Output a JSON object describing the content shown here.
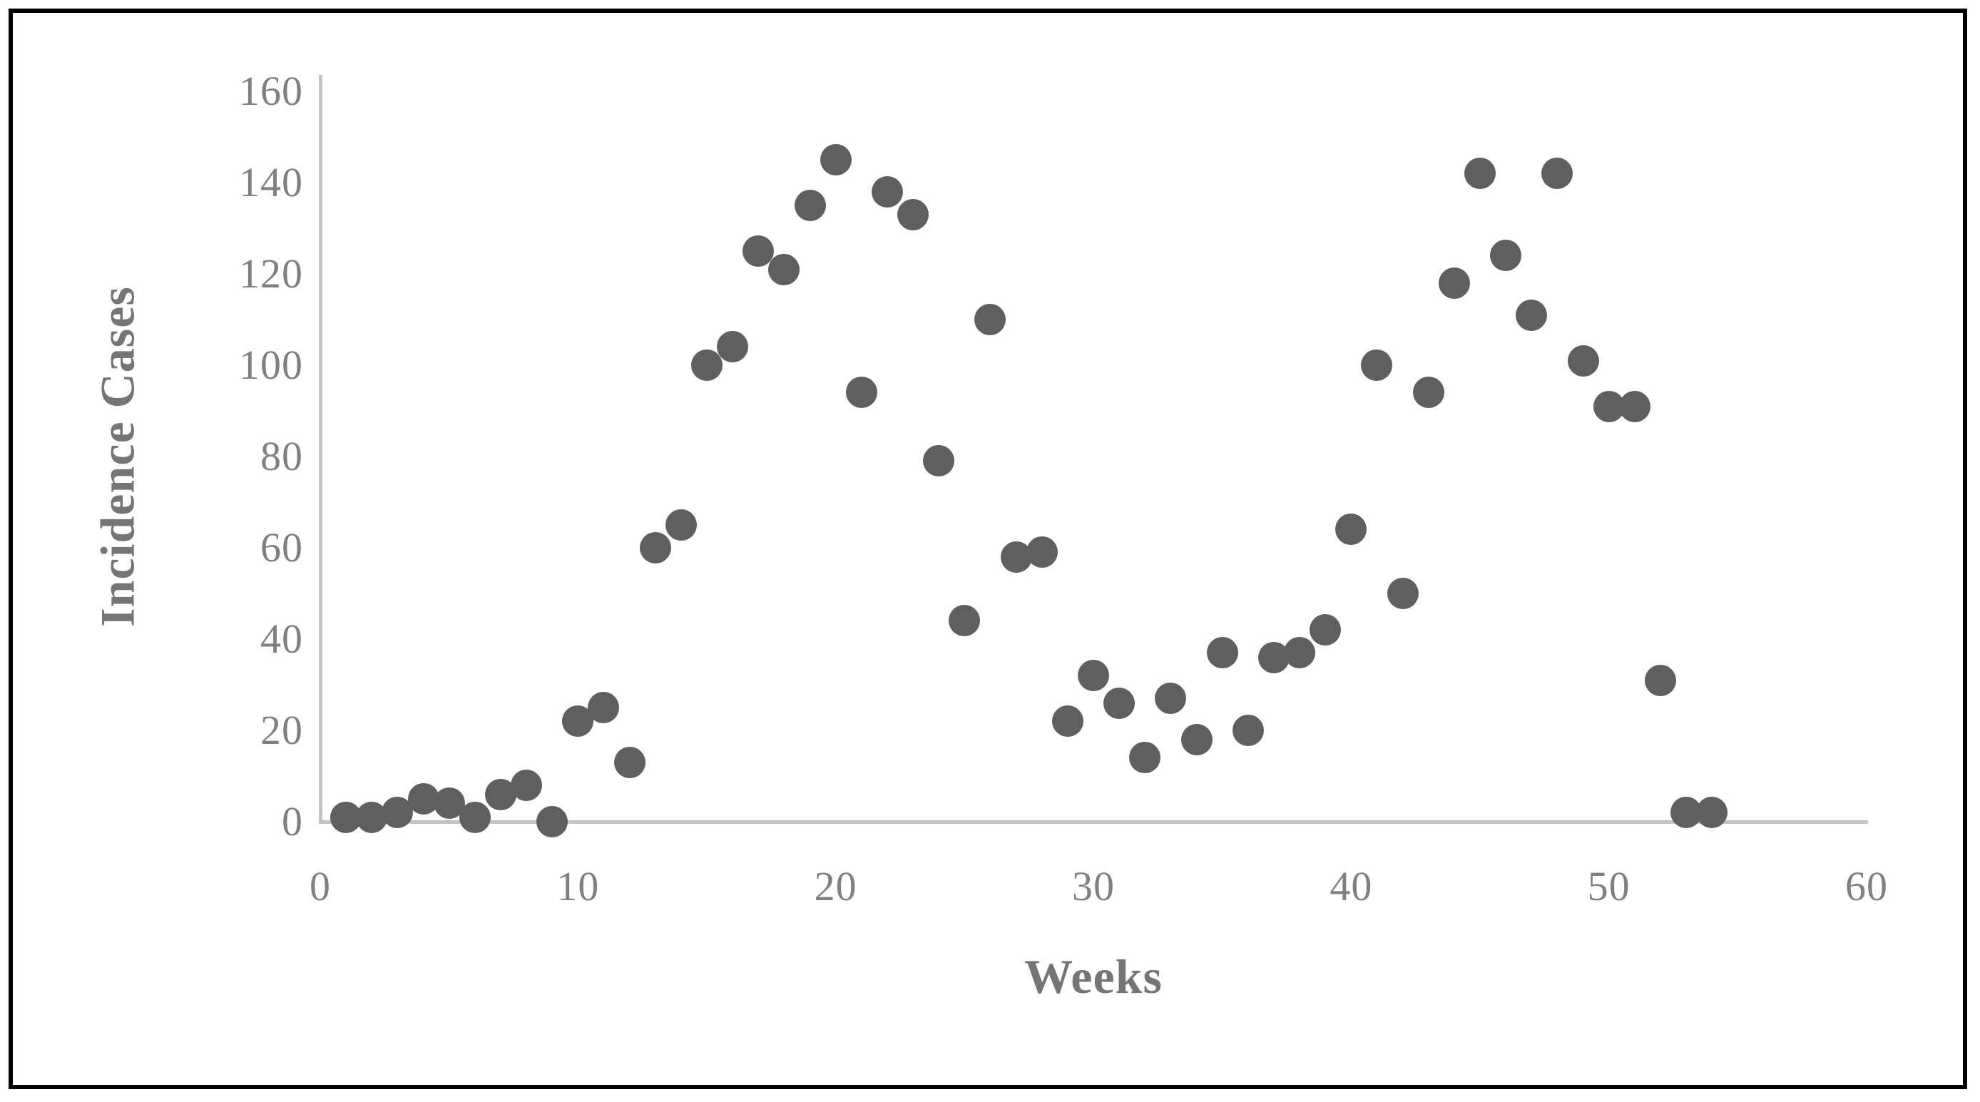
{
  "figure": {
    "background_color": "#ffffff",
    "frame_color": "#000000",
    "axis_line_color": "#c3c3c3",
    "tick_label_color": "#808080",
    "axis_title_color": "#757575",
    "marker_color": "#5f5f5f"
  },
  "chart_data": {
    "type": "scatter",
    "title": "",
    "xlabel": "Weeks",
    "ylabel": "Incidence Cases",
    "xlim": [
      0,
      60
    ],
    "ylim": [
      0,
      160
    ],
    "x_ticks": [
      0,
      10,
      20,
      30,
      40,
      50,
      60
    ],
    "y_ticks": [
      0,
      20,
      40,
      60,
      80,
      100,
      120,
      140,
      160
    ],
    "grid": false,
    "legend": false,
    "series": [
      {
        "name": "Incidence Cases",
        "x": [
          1,
          2,
          3,
          4,
          5,
          6,
          7,
          8,
          9,
          10,
          11,
          12,
          13,
          14,
          15,
          16,
          17,
          18,
          19,
          20,
          21,
          22,
          23,
          24,
          25,
          26,
          27,
          28,
          29,
          30,
          31,
          32,
          33,
          34,
          35,
          36,
          37,
          38,
          39,
          40,
          41,
          42,
          43,
          44,
          45,
          46,
          47,
          48,
          49,
          50,
          51,
          52,
          53,
          54
        ],
        "y": [
          1,
          1,
          2,
          5,
          4,
          1,
          6,
          8,
          0,
          22,
          25,
          13,
          60,
          65,
          100,
          104,
          125,
          121,
          135,
          145,
          94,
          138,
          133,
          79,
          44,
          110,
          58,
          59,
          22,
          32,
          26,
          14,
          27,
          18,
          37,
          20,
          36,
          37,
          42,
          64,
          100,
          50,
          94,
          118,
          142,
          124,
          111,
          142,
          101,
          91,
          91,
          31,
          2,
          2
        ]
      }
    ]
  }
}
